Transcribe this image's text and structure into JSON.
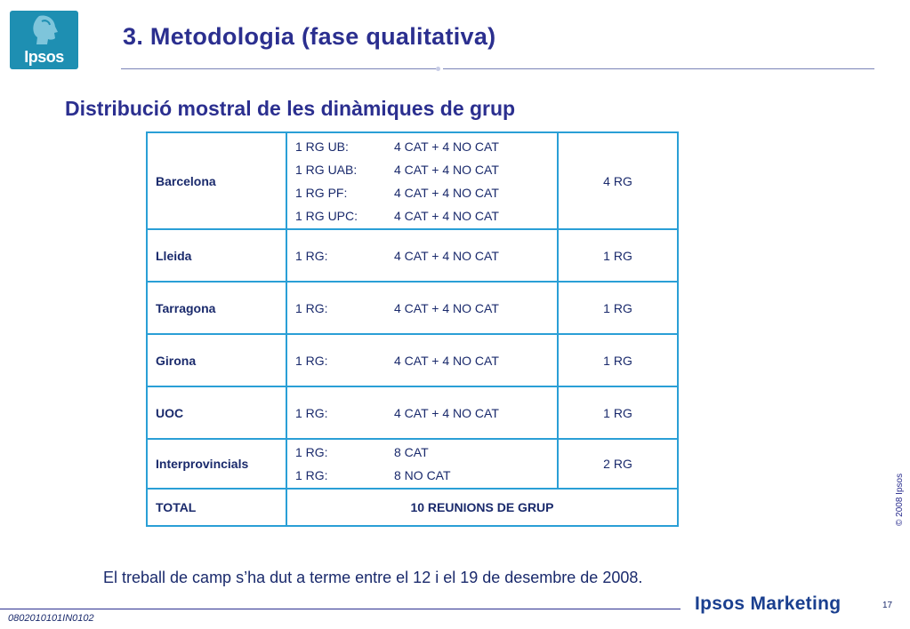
{
  "logo": {
    "text": "Ipsos"
  },
  "header": {
    "title": "3. Metodologia (fase qualitativa)"
  },
  "section": {
    "subtitle": "Distribució mostral de les dinàmiques de grup"
  },
  "table": {
    "rows": [
      {
        "city": "Barcelona",
        "lines": [
          {
            "k": "1 RG UB:",
            "v": "4 CAT + 4 NO CAT"
          },
          {
            "k": "1 RG UAB:",
            "v": "4 CAT + 4 NO CAT"
          },
          {
            "k": "1 RG PF:",
            "v": "4 CAT + 4 NO CAT"
          },
          {
            "k": "1 RG UPC:",
            "v": "4 CAT + 4 NO CAT"
          }
        ],
        "count": "4 RG"
      },
      {
        "city": "Lleida",
        "lines": [
          {
            "k": "1 RG:",
            "v": "4 CAT + 4 NO CAT"
          }
        ],
        "count": "1 RG"
      },
      {
        "city": "Tarragona",
        "lines": [
          {
            "k": "1 RG:",
            "v": "4 CAT + 4 NO CAT"
          }
        ],
        "count": "1 RG"
      },
      {
        "city": "Girona",
        "lines": [
          {
            "k": "1 RG:",
            "v": "4 CAT + 4 NO CAT"
          }
        ],
        "count": "1 RG"
      },
      {
        "city": "UOC",
        "lines": [
          {
            "k": "1 RG:",
            "v": "4 CAT + 4 NO CAT"
          }
        ],
        "count": "1 RG"
      },
      {
        "city": "Interprovincials",
        "lines": [
          {
            "k": "1 RG:",
            "v": "8 CAT"
          },
          {
            "k": "1 RG:",
            "v": "8 NO CAT"
          }
        ],
        "count": "2 RG"
      }
    ],
    "total": {
      "label": "TOTAL",
      "value": "10 REUNIONS DE GRUP"
    }
  },
  "note": "El treball de camp s’ha dut a terme entre el 12 i el 19 de desembre de 2008.",
  "copyright": "© 2008 Ipsos",
  "footer": {
    "code": "0802010101IN0102",
    "brand": "Ipsos Marketing",
    "page": "17"
  },
  "colors": {
    "title": "#2b2f8f",
    "text": "#1a2a6c",
    "table_border": "#2a9fd6",
    "logo_bg": "#1e8fb2"
  },
  "icons": {
    "logo": "ipsos-head-logo"
  }
}
